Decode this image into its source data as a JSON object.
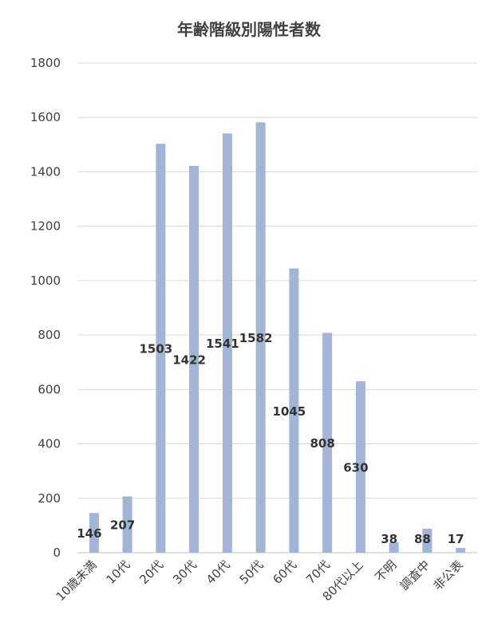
{
  "chart_data": {
    "type": "bar",
    "title": "年齢階級別陽性者数",
    "xlabel": "",
    "ylabel": "",
    "categories": [
      "10歳未満",
      "10代",
      "20代",
      "30代",
      "40代",
      "50代",
      "60代",
      "70代",
      "80代以上",
      "不明",
      "調査中",
      "非公表"
    ],
    "values": [
      146,
      207,
      1503,
      1422,
      1541,
      1582,
      1045,
      808,
      630,
      38,
      88,
      17
    ],
    "data_labels": [
      "146",
      "207",
      "1503",
      "1422",
      "1541",
      "1582",
      "1045",
      "808",
      "630",
      "38",
      "88",
      "17"
    ],
    "ylim": [
      0,
      1800
    ],
    "yticks": [
      "0",
      "200",
      "400",
      "600",
      "800",
      "1000",
      "1200",
      "1400",
      "1600",
      "1800"
    ],
    "grid": true,
    "legend": "none",
    "bar_color": "#a2b5d6",
    "grid_color": "#d9d9d9",
    "axis_color": "#bfbfbf"
  }
}
